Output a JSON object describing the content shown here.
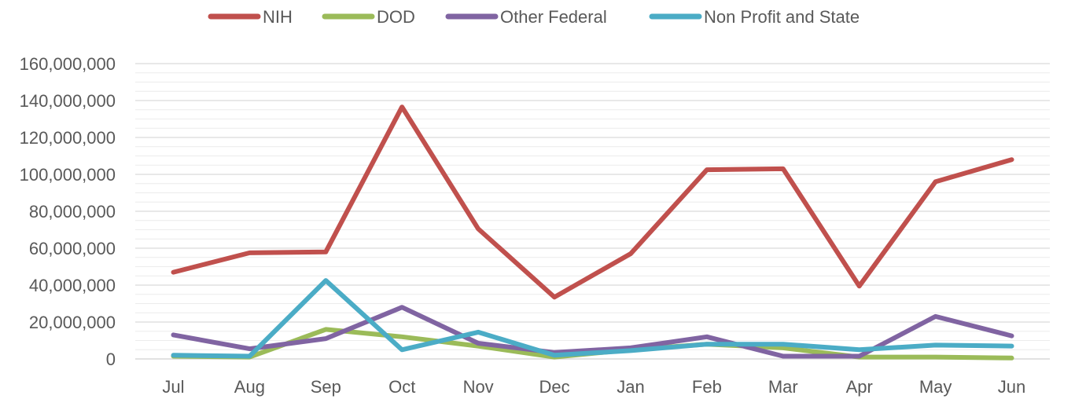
{
  "chart_data": {
    "type": "line",
    "title": "",
    "xlabel": "",
    "ylabel": "",
    "categories": [
      "Jul",
      "Aug",
      "Sep",
      "Oct",
      "Nov",
      "Dec",
      "Jan",
      "Feb",
      "Mar",
      "Apr",
      "May",
      "Jun"
    ],
    "ylim": [
      0,
      160000000
    ],
    "y_ticks": [
      0,
      20000000,
      40000000,
      60000000,
      80000000,
      100000000,
      120000000,
      140000000,
      160000000
    ],
    "y_tick_labels": [
      "0",
      "20,000,000",
      "40,000,000",
      "60,000,000",
      "80,000,000",
      "100,000,000",
      "120,000,000",
      "140,000,000",
      "160,000,000"
    ],
    "grid": true,
    "legend_position": "top",
    "series": [
      {
        "name": "NIH",
        "color": "#c0504d",
        "values": [
          47000000,
          57500000,
          58000000,
          136500000,
          70500000,
          33500000,
          57000000,
          102500000,
          103000000,
          39500000,
          96000000,
          108000000
        ]
      },
      {
        "name": "DOD",
        "color": "#9bbb59",
        "values": [
          1500000,
          1000000,
          16000000,
          12000000,
          7000000,
          1000000,
          5000000,
          8000000,
          6000000,
          1000000,
          1000000,
          500000
        ]
      },
      {
        "name": "Other Federal",
        "color": "#8064a2",
        "values": [
          13000000,
          5500000,
          11000000,
          28000000,
          8500000,
          3500000,
          6000000,
          12000000,
          1500000,
          1500000,
          23000000,
          12500000
        ]
      },
      {
        "name": "Non Profit and State",
        "color": "#4bacc6",
        "values": [
          2000000,
          1500000,
          42500000,
          5000000,
          14500000,
          2000000,
          4500000,
          8000000,
          8000000,
          5000000,
          7500000,
          7000000
        ]
      }
    ]
  }
}
